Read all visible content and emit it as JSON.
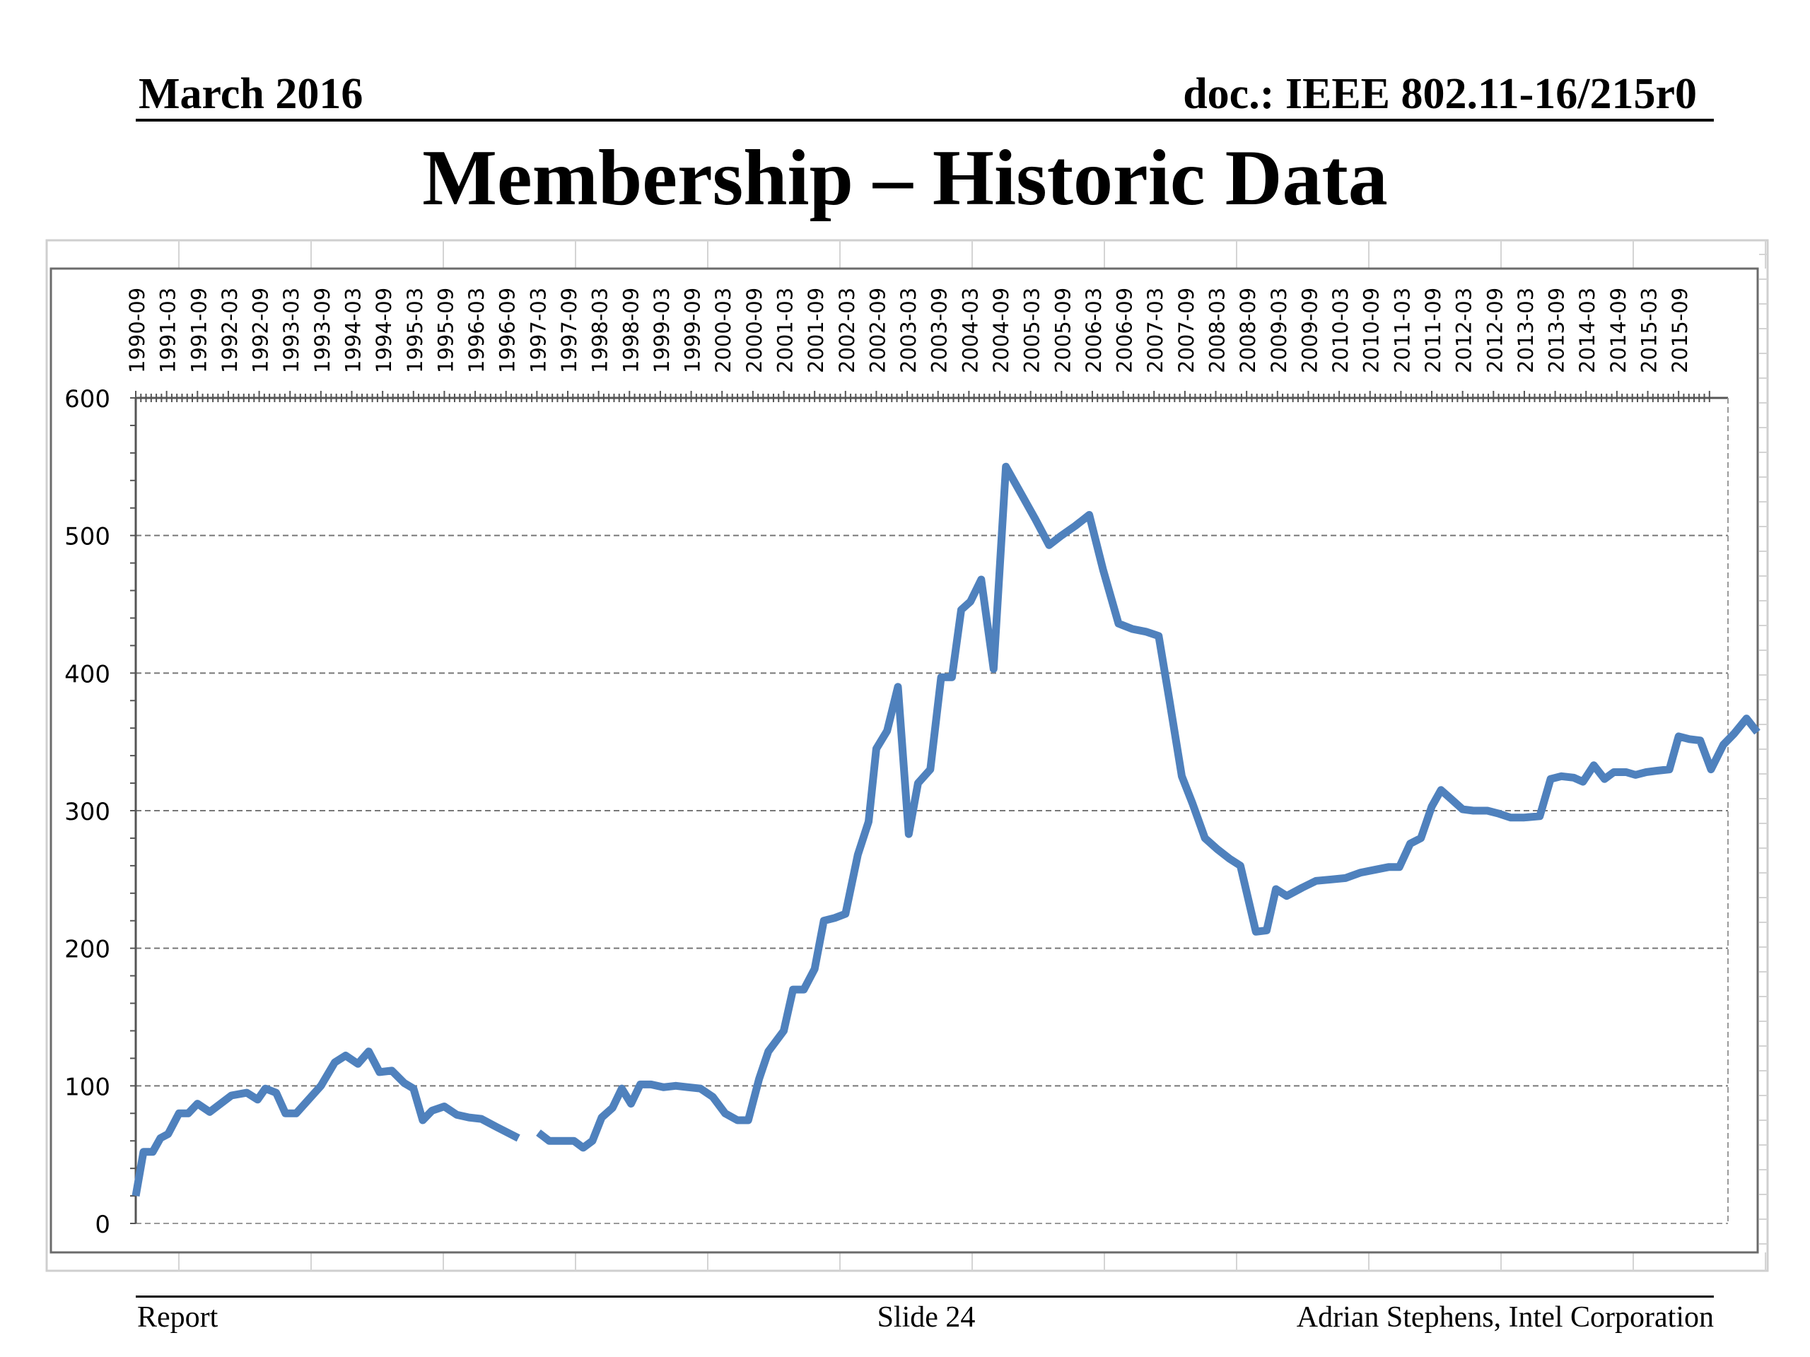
{
  "header": {
    "date": "March 2016",
    "doc": "doc.: IEEE 802.11-16/215r0"
  },
  "slide": {
    "title": "Membership – Historic Data"
  },
  "footer": {
    "left": "Report",
    "center": "Slide 24",
    "right": "Adrian Stephens, Intel Corporation"
  },
  "colors": {
    "series": "#4f81bd",
    "grid": "#777777",
    "text": "#000000"
  },
  "chart_data": {
    "type": "line",
    "title": "",
    "xlabel": "",
    "ylabel": "",
    "ylim": [
      0,
      600
    ],
    "yticks": [
      0,
      100,
      200,
      300,
      400,
      500,
      600
    ],
    "grid": true,
    "legend": "none",
    "xlabel_rotation": "vertical",
    "categories": [
      "1990-09",
      "1991-03",
      "1991-09",
      "1992-03",
      "1992-09",
      "1993-03",
      "1993-09",
      "1994-03",
      "1994-09",
      "1995-03",
      "1995-09",
      "1996-03",
      "1996-09",
      "1997-03",
      "1997-09",
      "1998-03",
      "1998-09",
      "1999-03",
      "1999-09",
      "2000-03",
      "2000-09",
      "2001-03",
      "2001-09",
      "2002-03",
      "2002-09",
      "2003-03",
      "2003-09",
      "2004-03",
      "2004-09",
      "2005-03",
      "2005-09",
      "2006-03",
      "2006-09",
      "2007-03",
      "2007-09",
      "2008-03",
      "2008-09",
      "2009-03",
      "2009-09",
      "2010-03",
      "2010-09",
      "2011-03",
      "2011-09",
      "2012-03",
      "2012-09",
      "2013-03",
      "2013-09",
      "2014-03",
      "2014-09",
      "2015-03",
      "2015-09"
    ],
    "series": [
      {
        "points": [
          [
            0.0,
            20
          ],
          [
            0.25,
            52
          ],
          [
            0.55,
            52
          ],
          [
            0.8,
            62
          ],
          [
            1.05,
            65
          ],
          [
            1.4,
            80
          ],
          [
            1.7,
            80
          ],
          [
            2.0,
            87
          ],
          [
            2.4,
            81
          ],
          [
            2.75,
            87
          ],
          [
            3.1,
            93
          ],
          [
            3.6,
            95
          ],
          [
            3.95,
            90
          ],
          [
            4.2,
            98
          ],
          [
            4.55,
            95
          ],
          [
            4.85,
            80
          ],
          [
            5.2,
            80
          ],
          [
            5.6,
            90
          ],
          [
            6.0,
            100
          ],
          [
            6.45,
            117
          ],
          [
            6.8,
            122
          ],
          [
            7.2,
            116
          ],
          [
            7.55,
            125
          ],
          [
            7.9,
            110
          ],
          [
            8.3,
            111
          ],
          [
            8.7,
            102
          ],
          [
            9.0,
            98
          ],
          [
            9.3,
            75
          ],
          [
            9.6,
            82
          ],
          [
            10.0,
            85
          ],
          [
            10.4,
            79
          ],
          [
            10.8,
            77
          ],
          [
            11.2,
            76
          ],
          [
            11.7,
            70
          ],
          [
            12.4,
            62
          ],
          null,
          [
            13.05,
            66
          ],
          [
            13.4,
            60
          ],
          [
            13.8,
            60
          ],
          [
            14.2,
            60
          ],
          [
            14.5,
            55
          ],
          [
            14.8,
            60
          ],
          [
            15.1,
            77
          ],
          [
            15.45,
            84
          ],
          [
            15.75,
            98
          ],
          [
            16.05,
            87
          ],
          [
            16.35,
            101
          ],
          [
            16.7,
            101
          ],
          [
            17.1,
            99
          ],
          [
            17.5,
            100
          ],
          [
            17.9,
            99
          ],
          [
            18.3,
            98
          ],
          [
            18.7,
            92
          ],
          [
            19.1,
            80
          ],
          [
            19.5,
            75
          ],
          [
            19.85,
            75
          ],
          [
            20.2,
            105
          ],
          [
            20.5,
            125
          ],
          [
            21.0,
            140
          ],
          [
            21.3,
            170
          ],
          [
            21.65,
            170
          ],
          [
            22.0,
            185
          ],
          [
            22.3,
            220
          ],
          [
            22.65,
            222
          ],
          [
            23.0,
            225
          ],
          [
            23.4,
            268
          ],
          [
            23.75,
            292
          ],
          [
            24.0,
            345
          ],
          [
            24.35,
            358
          ],
          [
            24.7,
            390
          ],
          [
            25.05,
            283
          ],
          [
            25.35,
            320
          ],
          [
            25.75,
            330
          ],
          [
            26.1,
            397
          ],
          [
            26.45,
            397
          ],
          [
            26.75,
            446
          ],
          [
            27.05,
            452
          ],
          [
            27.4,
            468
          ],
          [
            27.8,
            403
          ],
          [
            28.2,
            550
          ],
          [
            28.7,
            530
          ],
          [
            29.15,
            512
          ],
          [
            29.6,
            493
          ],
          [
            30.0,
            500
          ],
          [
            30.45,
            507
          ],
          [
            30.9,
            515
          ],
          [
            31.35,
            475
          ],
          [
            31.85,
            436
          ],
          [
            32.3,
            432
          ],
          [
            32.75,
            430
          ],
          [
            33.15,
            427
          ],
          [
            33.5,
            380
          ],
          [
            33.9,
            325
          ],
          [
            34.25,
            305
          ],
          [
            34.65,
            280
          ],
          [
            35.05,
            272
          ],
          [
            35.45,
            265
          ],
          [
            35.8,
            260
          ],
          [
            36.3,
            212
          ],
          [
            36.65,
            213
          ],
          [
            36.95,
            243
          ],
          [
            37.3,
            238
          ],
          [
            37.8,
            244
          ],
          [
            38.25,
            249
          ],
          [
            38.75,
            250
          ],
          [
            39.2,
            251
          ],
          [
            39.7,
            255
          ],
          [
            40.15,
            257
          ],
          [
            40.6,
            259
          ],
          [
            40.95,
            259
          ],
          [
            41.3,
            276
          ],
          [
            41.65,
            280
          ],
          [
            42.0,
            303
          ],
          [
            42.3,
            315
          ],
          [
            42.65,
            308
          ],
          [
            43.0,
            301
          ],
          [
            43.35,
            300
          ],
          [
            43.8,
            300
          ],
          [
            44.15,
            298
          ],
          [
            44.55,
            295
          ],
          [
            45.0,
            295
          ],
          [
            45.5,
            296
          ],
          [
            45.85,
            323
          ],
          [
            46.2,
            325
          ],
          [
            46.6,
            324
          ],
          [
            46.9,
            321
          ],
          [
            47.25,
            333
          ],
          [
            47.6,
            323
          ],
          [
            47.9,
            328
          ],
          [
            48.3,
            328
          ],
          [
            48.6,
            326
          ],
          [
            48.95,
            328
          ],
          [
            49.3,
            329
          ],
          [
            49.7,
            330
          ],
          [
            50.0,
            354
          ],
          [
            50.35,
            352
          ],
          [
            50.7,
            351
          ],
          [
            51.05,
            330
          ],
          [
            51.45,
            348
          ],
          [
            51.8,
            356
          ],
          [
            52.2,
            367
          ],
          [
            52.55,
            357
          ]
        ]
      }
    ]
  }
}
